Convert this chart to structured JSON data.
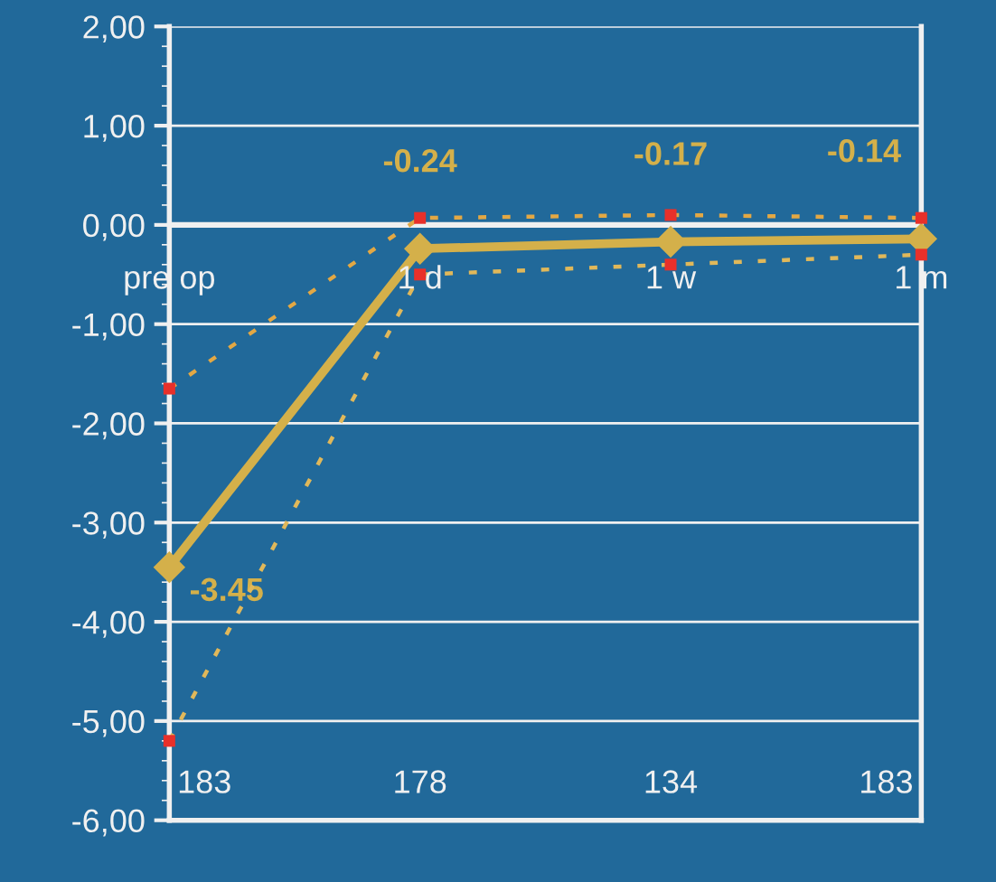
{
  "chart_data": {
    "type": "line",
    "categories": [
      "pre op",
      "1 d",
      "1 w",
      "1 m"
    ],
    "series": [
      {
        "color": "#d4b04a",
        "values": [
          -3.45,
          -0.24,
          -0.17,
          -0.14
        ],
        "marker": "diamond",
        "line_style": "solid",
        "data_labels": true
      },
      {
        "color": "#e3a844",
        "colors": [
          "#e8302a",
          "#e8302a",
          "#e8302a",
          "#e8302a"
        ],
        "values": [
          -1.65,
          0.07,
          0.1,
          0.07
        ],
        "marker": "square",
        "line_style": "dashed"
      },
      {
        "color": "#e0b85a",
        "colors": [
          "#e8302a",
          "#e8302a",
          "#e8302a",
          "#e8302a"
        ],
        "values": [
          -5.2,
          -0.5,
          -0.4,
          -0.3
        ],
        "marker": "square",
        "line_style": "dashed"
      }
    ],
    "ylim": [
      -6,
      2
    ],
    "yticks": [
      {
        "value": -6,
        "label": "-6,00"
      },
      {
        "value": -5,
        "label": "-5,00"
      },
      {
        "value": -4,
        "label": "-4,00"
      },
      {
        "value": -3,
        "label": "-3,00"
      },
      {
        "value": -2,
        "label": "-2,00"
      },
      {
        "value": -1,
        "label": "-1,00"
      },
      {
        "value": 0,
        "label": "0,00"
      },
      {
        "value": 1,
        "label": "1,00"
      },
      {
        "value": 2,
        "label": "2,00"
      }
    ],
    "grid": "y",
    "legend": false,
    "annotations": [
      "183",
      "178",
      "134",
      "183"
    ]
  }
}
